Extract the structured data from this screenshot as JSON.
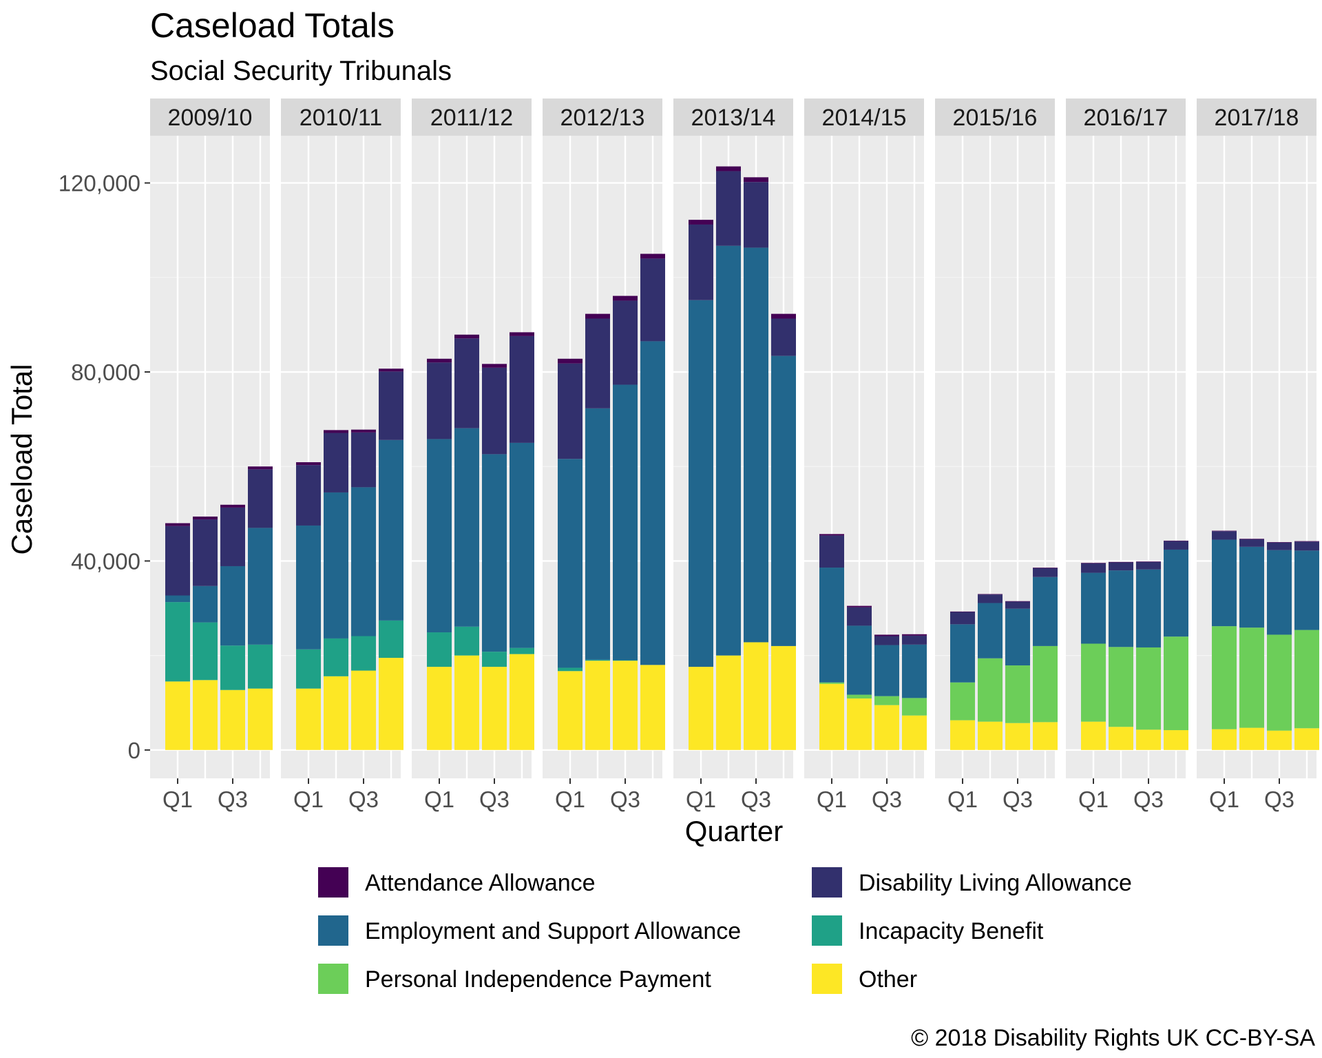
{
  "chart_data": {
    "type": "bar",
    "stacked": true,
    "faceted": true,
    "title": "Caseload Totals",
    "subtitle": "Social Security Tribunals",
    "xlabel": "Quarter",
    "ylabel": "Caseload Total",
    "ylim": [
      -6000,
      130000
    ],
    "yticks": [
      0,
      40000,
      80000,
      120000
    ],
    "ytick_labels": [
      "0",
      "40,000",
      "80,000",
      "120,000"
    ],
    "x_tick_labels": [
      "Q1",
      "Q3"
    ],
    "facets": [
      "2009/10",
      "2010/11",
      "2011/12",
      "2012/13",
      "2013/14",
      "2014/15",
      "2015/16",
      "2016/17",
      "2017/18"
    ],
    "categories": [
      "Q1",
      "Q2",
      "Q3",
      "Q4"
    ],
    "grid": true,
    "legend_position": "bottom",
    "copyright": "© 2018 Disability Rights UK CC-BY-SA",
    "series": [
      {
        "name": "Other",
        "color": "#FDE725",
        "values": [
          [
            14500,
            14800,
            12700,
            13000
          ],
          [
            13000,
            15600,
            16800,
            19500
          ],
          [
            17600,
            20000,
            17600,
            20300
          ],
          [
            16700,
            18900,
            18900,
            18000
          ],
          [
            17600,
            20000,
            22800,
            22000
          ],
          [
            14000,
            10900,
            9500,
            7300
          ],
          [
            6300,
            6000,
            5700,
            5900
          ],
          [
            6000,
            4900,
            4300,
            4200
          ],
          [
            4400,
            4700,
            4100,
            4600
          ]
        ]
      },
      {
        "name": "Personal Independence Payment",
        "color": "#6CCE59",
        "values": [
          [
            0,
            0,
            0,
            0
          ],
          [
            0,
            0,
            0,
            0
          ],
          [
            0,
            0,
            0,
            0
          ],
          [
            0,
            0,
            0,
            0
          ],
          [
            0,
            0,
            0,
            0
          ],
          [
            300,
            800,
            1900,
            3700
          ],
          [
            8000,
            13400,
            12200,
            16100
          ],
          [
            16500,
            16900,
            17400,
            19800
          ],
          [
            21800,
            21200,
            20300,
            20800
          ]
        ]
      },
      {
        "name": "Incapacity Benefit",
        "color": "#1FA187",
        "values": [
          [
            16800,
            12200,
            9400,
            9300
          ],
          [
            8300,
            8000,
            7300,
            7900
          ],
          [
            7300,
            6100,
            3200,
            1300
          ],
          [
            700,
            200,
            100,
            0
          ],
          [
            0,
            0,
            0,
            0
          ],
          [
            0,
            0,
            0,
            0
          ],
          [
            0,
            0,
            0,
            0
          ],
          [
            0,
            0,
            0,
            0
          ],
          [
            0,
            0,
            0,
            0
          ]
        ]
      },
      {
        "name": "Employment and Support Allowance",
        "color": "#21668D",
        "values": [
          [
            1400,
            7700,
            16800,
            24700
          ],
          [
            26200,
            30900,
            31500,
            38200
          ],
          [
            40900,
            42000,
            41800,
            43400
          ],
          [
            44200,
            53200,
            58300,
            68500
          ],
          [
            77600,
            86700,
            83500,
            61400
          ],
          [
            24300,
            14600,
            10800,
            11300
          ],
          [
            12300,
            11700,
            12000,
            14600
          ],
          [
            15000,
            16200,
            16500,
            18400
          ],
          [
            18300,
            17100,
            17900,
            16800
          ]
        ]
      },
      {
        "name": "Disability Living Allowance",
        "color": "#32306D",
        "values": [
          [
            14700,
            14100,
            12400,
            12400
          ],
          [
            12800,
            12600,
            11600,
            14500
          ],
          [
            16200,
            19000,
            18300,
            22600
          ],
          [
            20200,
            19000,
            17800,
            17500
          ],
          [
            16000,
            15800,
            13900,
            7900
          ],
          [
            6800,
            3900,
            1900,
            1900
          ],
          [
            2600,
            1800,
            1500,
            1900
          ],
          [
            2000,
            1700,
            1600,
            1800
          ],
          [
            1800,
            1600,
            1600,
            1900
          ]
        ]
      },
      {
        "name": "Attendance Allowance",
        "color": "#440154",
        "values": [
          [
            600,
            600,
            600,
            600
          ],
          [
            600,
            600,
            600,
            600
          ],
          [
            800,
            800,
            800,
            800
          ],
          [
            1000,
            1000,
            1000,
            1000
          ],
          [
            1000,
            1000,
            1000,
            1000
          ],
          [
            300,
            300,
            300,
            300
          ],
          [
            100,
            100,
            100,
            100
          ],
          [
            100,
            100,
            100,
            100
          ],
          [
            100,
            100,
            100,
            100
          ]
        ]
      }
    ],
    "legend_items": [
      {
        "name": "Attendance Allowance",
        "color": "#440154"
      },
      {
        "name": "Disability Living Allowance",
        "color": "#32306D"
      },
      {
        "name": "Employment and Support Allowance",
        "color": "#21668D"
      },
      {
        "name": "Incapacity Benefit",
        "color": "#1FA187"
      },
      {
        "name": "Personal Independence Payment",
        "color": "#6CCE59"
      },
      {
        "name": "Other",
        "color": "#FDE725"
      }
    ]
  }
}
